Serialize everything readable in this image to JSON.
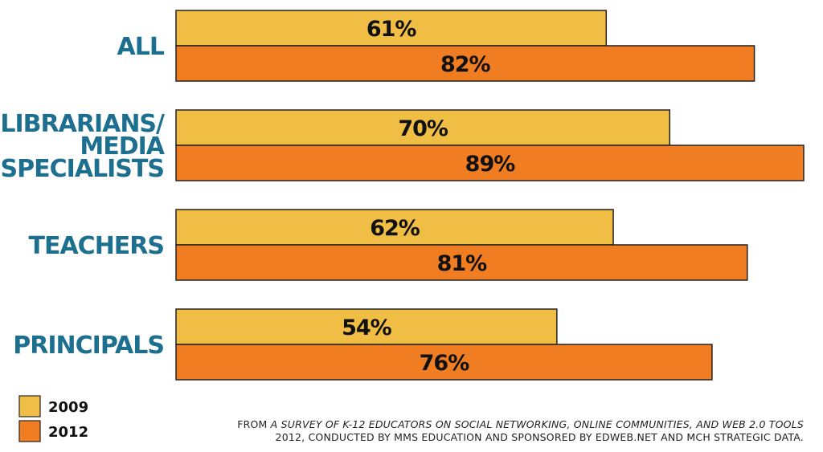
{
  "chart_data": {
    "type": "bar",
    "orientation": "horizontal",
    "categories": [
      "ALL",
      "LIBRARIANS/ MEDIA SPECIALISTS",
      "TEACHERS",
      "PRINCIPALS"
    ],
    "category_lines": [
      [
        "ALL"
      ],
      [
        "LIBRARIANS/",
        "MEDIA",
        "SPECIALISTS"
      ],
      [
        "TEACHERS"
      ],
      [
        "PRINCIPALS"
      ]
    ],
    "series": [
      {
        "name": "2009",
        "values": [
          61,
          70,
          62,
          54
        ],
        "labels": [
          "61%",
          "70%",
          "62%",
          "54%"
        ],
        "color": "#f0be45"
      },
      {
        "name": "2012",
        "values": [
          82,
          89,
          81,
          76
        ],
        "labels": [
          "82%",
          "89%",
          "81%",
          "76%"
        ],
        "color": "#f07d22"
      }
    ],
    "xlim": [
      0,
      89
    ],
    "grid": false,
    "legend_position": "bottom-left"
  },
  "source": {
    "prefix": "FROM ",
    "title": "A SURVEY OF K-12 EDUCATORS ON SOCIAL NETWORKING, ONLINE COMMUNITIES, AND WEB 2.0 TOOLS",
    "line2": "2012, CONDUCTED BY MMS EDUCATION AND SPONSORED BY EDWEB.NET AND MCH STRATEGIC DATA."
  },
  "colors": {
    "category_text": "#1d6f8f",
    "bar_stroke": "#222222"
  }
}
